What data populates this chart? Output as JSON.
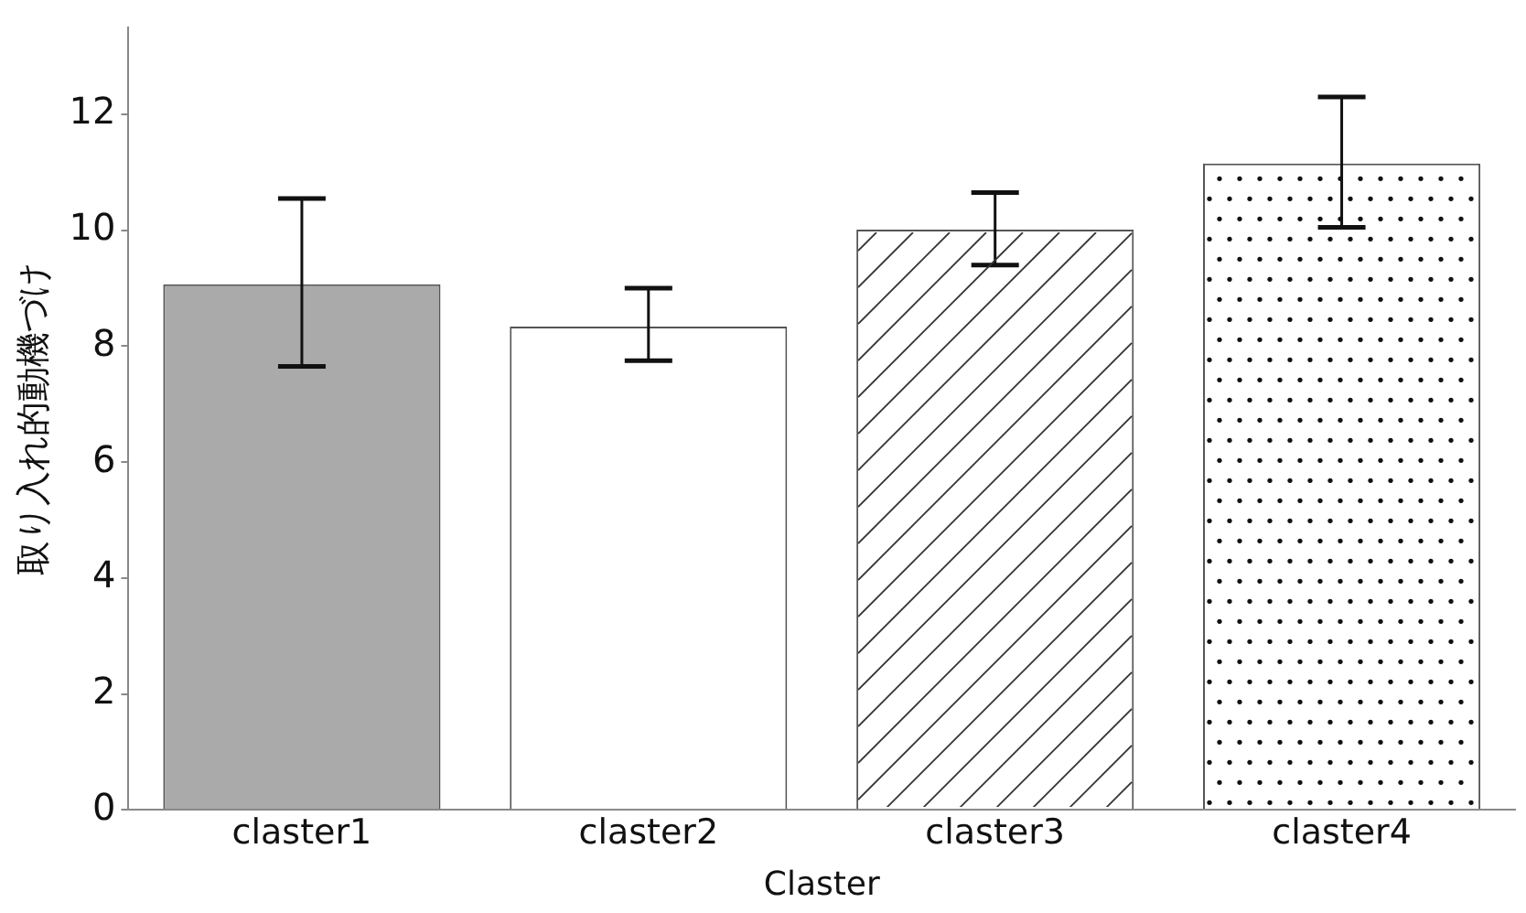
{
  "chart_data": {
    "type": "bar",
    "xlabel": "Claster",
    "ylabel": "取り入れ的動機づけ",
    "categories": [
      "claster1",
      "claster2",
      "claster3",
      "claster4"
    ],
    "values": [
      9.07,
      8.34,
      10.01,
      11.15
    ],
    "colors": [
      "#aaaaaa",
      "#ffffff",
      "#ffffff",
      "#ffffff"
    ],
    "errors": [
      [
        7.65,
        10.55
      ],
      [
        7.75,
        9.0
      ],
      [
        9.4,
        10.65
      ],
      [
        10.05,
        12.3
      ]
    ],
    "ylim": [
      0,
      13.5
    ],
    "yticks": [
      0,
      2,
      4,
      6,
      8,
      10,
      12
    ],
    "grid": false,
    "legend": false
  }
}
